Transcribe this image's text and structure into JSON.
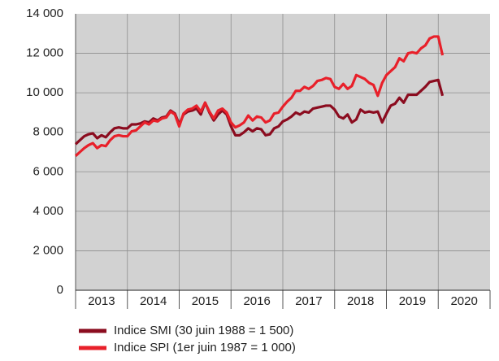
{
  "chart_data": {
    "type": "line",
    "categories": [
      "2013",
      "2014",
      "2015",
      "2016",
      "2017",
      "2018",
      "2019",
      "2020"
    ],
    "xlim": [
      2013,
      2021
    ],
    "x": [
      2013.0,
      2013.083,
      2013.167,
      2013.25,
      2013.333,
      2013.417,
      2013.5,
      2013.583,
      2013.667,
      2013.75,
      2013.833,
      2013.917,
      2014.0,
      2014.083,
      2014.167,
      2014.25,
      2014.333,
      2014.417,
      2014.5,
      2014.583,
      2014.667,
      2014.75,
      2014.833,
      2014.917,
      2015.0,
      2015.083,
      2015.167,
      2015.25,
      2015.333,
      2015.417,
      2015.5,
      2015.583,
      2015.667,
      2015.75,
      2015.833,
      2015.917,
      2016.0,
      2016.083,
      2016.167,
      2016.25,
      2016.333,
      2016.417,
      2016.5,
      2016.583,
      2016.667,
      2016.75,
      2016.833,
      2016.917,
      2017.0,
      2017.083,
      2017.167,
      2017.25,
      2017.333,
      2017.417,
      2017.5,
      2017.583,
      2017.667,
      2017.75,
      2017.833,
      2017.917,
      2018.0,
      2018.083,
      2018.167,
      2018.25,
      2018.333,
      2018.417,
      2018.5,
      2018.583,
      2018.667,
      2018.75,
      2018.833,
      2018.917,
      2019.0,
      2019.083,
      2019.167,
      2019.25,
      2019.333,
      2019.417,
      2019.5,
      2019.583,
      2019.667,
      2019.75,
      2019.833,
      2019.917,
      2020.0,
      2020.083
    ],
    "series": [
      {
        "name": "Indice SMI (30 juin 1988 = 1 500)",
        "color": "#8b0c1f",
        "values": [
          7400,
          7600,
          7800,
          7900,
          7950,
          7700,
          7850,
          7750,
          8000,
          8200,
          8250,
          8200,
          8200,
          8400,
          8400,
          8450,
          8550,
          8500,
          8700,
          8600,
          8750,
          8800,
          9100,
          8950,
          8400,
          8900,
          9050,
          9100,
          9200,
          8900,
          9500,
          9000,
          8600,
          8900,
          9100,
          8900,
          8300,
          7850,
          7850,
          8000,
          8200,
          8050,
          8200,
          8150,
          7850,
          7900,
          8200,
          8300,
          8550,
          8650,
          8800,
          9000,
          8900,
          9050,
          9000,
          9200,
          9250,
          9300,
          9350,
          9350,
          9150,
          8800,
          8700,
          8900,
          8500,
          8650,
          9150,
          9000,
          9050,
          9000,
          9050,
          8500,
          8950,
          9350,
          9450,
          9750,
          9500,
          9900,
          9900,
          9900,
          10100,
          10300,
          10550,
          10600,
          10650,
          9850
        ]
      },
      {
        "name": "Indice SPI (1er juin 1987 = 1 000)",
        "color": "#e8202a",
        "values": [
          6800,
          7000,
          7200,
          7350,
          7450,
          7200,
          7350,
          7300,
          7600,
          7800,
          7850,
          7800,
          7800,
          8050,
          8100,
          8300,
          8500,
          8400,
          8600,
          8550,
          8700,
          8750,
          9050,
          8900,
          8300,
          8950,
          9150,
          9200,
          9350,
          9050,
          9500,
          9050,
          8700,
          9100,
          9200,
          9000,
          8500,
          8250,
          8350,
          8500,
          8850,
          8600,
          8800,
          8750,
          8500,
          8600,
          8950,
          9000,
          9300,
          9550,
          9750,
          10100,
          10100,
          10300,
          10200,
          10350,
          10600,
          10650,
          10750,
          10700,
          10300,
          10200,
          10450,
          10200,
          10350,
          10900,
          10800,
          10700,
          10500,
          10400,
          9850,
          10500,
          10900,
          11100,
          11300,
          11750,
          11600,
          12000,
          12050,
          12000,
          12250,
          12400,
          12750,
          12850,
          12850,
          11900
        ]
      }
    ],
    "ylim": [
      0,
      14000
    ],
    "yticks": [
      0,
      {
        "value": 2000,
        "label": "2 000"
      },
      {
        "value": 4000,
        "label": "4 000"
      },
      {
        "value": 6000,
        "label": "6 000"
      },
      {
        "value": 8000,
        "label": "8 000"
      },
      {
        "value": 10000,
        "label": "10 000"
      },
      {
        "value": 12000,
        "label": "12 000"
      },
      {
        "value": 14000,
        "label": "14 000"
      }
    ],
    "grid": true
  }
}
